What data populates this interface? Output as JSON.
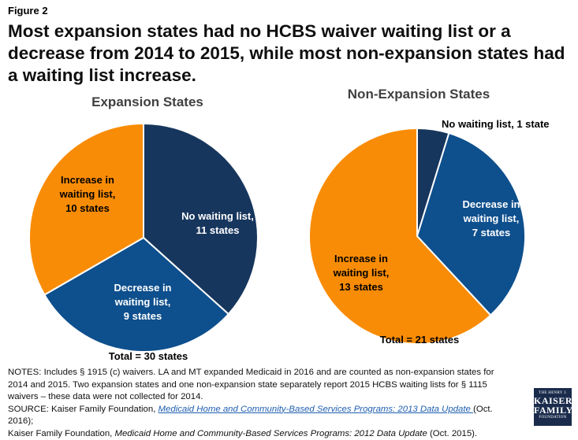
{
  "figure_label": "Figure 2",
  "title": "Most expansion states had no HCBS waiver waiting list or a decrease from 2014 to 2015, while most non-expansion states had a waiting list increase.",
  "colors": {
    "navy": "#17365d",
    "blue": "#0e4f8d",
    "orange": "#f98c06"
  },
  "chart_data": [
    {
      "type": "pie",
      "title": "Expansion States",
      "total_label": "Total = 30 states",
      "slices": [
        {
          "label_lines": [
            "No waiting list,",
            "11 states"
          ],
          "value": 11,
          "color": "#17365d"
        },
        {
          "label_lines": [
            "Decrease in",
            "waiting list,",
            "9 states"
          ],
          "value": 9,
          "color": "#0e4f8d"
        },
        {
          "label_lines": [
            "Increase in",
            "waiting list,",
            "10 states"
          ],
          "value": 10,
          "color": "#f98c06"
        }
      ]
    },
    {
      "type": "pie",
      "title": "Non-Expansion States",
      "total_label": "Total = 21 states",
      "slices": [
        {
          "label_lines": [
            "No waiting list, 1 state"
          ],
          "value": 1,
          "color": "#17365d"
        },
        {
          "label_lines": [
            "Decrease in",
            "waiting list,",
            "7 states"
          ],
          "value": 7,
          "color": "#0e4f8d"
        },
        {
          "label_lines": [
            "Increase in",
            "waiting list,",
            "13 states"
          ],
          "value": 13,
          "color": "#f98c06"
        }
      ]
    }
  ],
  "notes": {
    "notes_text": "NOTES:  Includes § 1915 (c) waivers.  LA and MT expanded Medicaid in 2016 and are counted as non-expansion states for 2014 and 2015.  Two expansion states and one non-expansion state separately report 2015 HCBS waiting lists for § 1115 waivers – these data were not collected for 2014.",
    "source_prefix": "SOURCE: Kaiser Family Foundation, ",
    "source_link": "Medicaid Home and Community-Based Services Programs:  2013 Data Update ",
    "source_after_link": "(Oct. 2016);",
    "source2_prefix": "Kaiser Family Foundation,  ",
    "source2_title": "Medicaid Home and Community-Based Services Programs:  2012 Data Update",
    "source2_after": " (Oct. 2015)."
  },
  "logo": {
    "line1": "THE HENRY J.",
    "line2": "KAISER",
    "line3": "FAMILY",
    "line4": "FOUNDATION"
  }
}
